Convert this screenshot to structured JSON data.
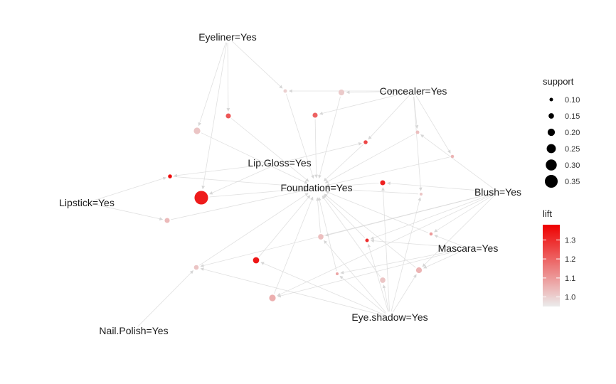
{
  "items": [
    {
      "id": "eyeliner",
      "label": "Eyeliner=Yes"
    },
    {
      "id": "concealer",
      "label": "Concealer=Yes"
    },
    {
      "id": "lipgloss",
      "label": "Lip.Gloss=Yes"
    },
    {
      "id": "foundation",
      "label": "Foundation=Yes"
    },
    {
      "id": "blush",
      "label": "Blush=Yes"
    },
    {
      "id": "lipstick",
      "label": "Lipstick=Yes"
    },
    {
      "id": "mascara",
      "label": "Mascara=Yes"
    },
    {
      "id": "eyeshadow",
      "label": "Eye.shadow=Yes"
    },
    {
      "id": "nailpolish",
      "label": "Nail.Polish=Yes"
    }
  ],
  "rules": [
    {
      "id": "r1",
      "support": 0.1,
      "lift": 1.0
    },
    {
      "id": "r2",
      "support": 0.16,
      "lift": 1.01
    },
    {
      "id": "r3",
      "support": 0.14,
      "lift": 1.22
    },
    {
      "id": "r4",
      "support": 0.14,
      "lift": 1.2
    },
    {
      "id": "r5",
      "support": 0.18,
      "lift": 1.02
    },
    {
      "id": "r6",
      "support": 0.1,
      "lift": 1.03
    },
    {
      "id": "r7",
      "support": 0.11,
      "lift": 1.25
    },
    {
      "id": "r8",
      "support": 0.09,
      "lift": 1.05
    },
    {
      "id": "r9",
      "support": 0.11,
      "lift": 1.36
    },
    {
      "id": "r10",
      "support": 0.14,
      "lift": 1.32
    },
    {
      "id": "r11",
      "support": 0.08,
      "lift": 1.02
    },
    {
      "id": "r12",
      "support": 0.37,
      "lift": 1.33
    },
    {
      "id": "r13",
      "support": 0.14,
      "lift": 1.04
    },
    {
      "id": "r14",
      "support": 0.15,
      "lift": 1.03
    },
    {
      "id": "r15",
      "support": 0.1,
      "lift": 1.3
    },
    {
      "id": "r16",
      "support": 0.09,
      "lift": 1.1
    },
    {
      "id": "r17",
      "support": 0.13,
      "lift": 1.02
    },
    {
      "id": "r18",
      "support": 0.17,
      "lift": 1.34
    },
    {
      "id": "r19",
      "support": 0.16,
      "lift": 1.05
    },
    {
      "id": "r20",
      "support": 0.08,
      "lift": 1.08
    },
    {
      "id": "r21",
      "support": 0.15,
      "lift": 1.02
    },
    {
      "id": "r22",
      "support": 0.18,
      "lift": 1.06
    }
  ],
  "edges": [
    [
      "eyeliner",
      "r1"
    ],
    [
      "eyeliner",
      "r5"
    ],
    [
      "eyeliner",
      "r3"
    ],
    [
      "eyeliner",
      "r12"
    ],
    [
      "concealer",
      "r1"
    ],
    [
      "concealer",
      "r2"
    ],
    [
      "concealer",
      "r4"
    ],
    [
      "concealer",
      "r8"
    ],
    [
      "concealer",
      "r7"
    ],
    [
      "concealer",
      "r11"
    ],
    [
      "concealer",
      "r6"
    ],
    [
      "lipgloss",
      "r9"
    ],
    [
      "lipgloss",
      "r12"
    ],
    [
      "lipgloss",
      "r7"
    ],
    [
      "lipstick",
      "r13"
    ],
    [
      "lipstick",
      "r9"
    ],
    [
      "blush",
      "r6"
    ],
    [
      "blush",
      "r10"
    ],
    [
      "blush",
      "r14"
    ],
    [
      "blush",
      "r15"
    ],
    [
      "blush",
      "r17"
    ],
    [
      "blush",
      "r16"
    ],
    [
      "blush",
      "r19"
    ],
    [
      "blush",
      "r22"
    ],
    [
      "mascara",
      "r15"
    ],
    [
      "mascara",
      "r16"
    ],
    [
      "mascara",
      "r19"
    ],
    [
      "mascara",
      "r22"
    ],
    [
      "mascara",
      "r20"
    ],
    [
      "eyeshadow",
      "r18"
    ],
    [
      "eyeshadow",
      "r20"
    ],
    [
      "eyeshadow",
      "r21"
    ],
    [
      "eyeshadow",
      "r14"
    ],
    [
      "eyeshadow",
      "r15"
    ],
    [
      "eyeshadow",
      "r17"
    ],
    [
      "eyeshadow",
      "r19"
    ],
    [
      "eyeshadow",
      "r11"
    ],
    [
      "eyeshadow",
      "r10"
    ],
    [
      "nailpolish",
      "r17"
    ],
    [
      "r1",
      "foundation"
    ],
    [
      "r2",
      "foundation"
    ],
    [
      "r3",
      "foundation"
    ],
    [
      "r4",
      "foundation"
    ],
    [
      "r5",
      "foundation"
    ],
    [
      "r6",
      "foundation"
    ],
    [
      "r7",
      "foundation"
    ],
    [
      "r8",
      "foundation"
    ],
    [
      "r9",
      "foundation"
    ],
    [
      "r10",
      "foundation"
    ],
    [
      "r11",
      "foundation"
    ],
    [
      "r12",
      "foundation"
    ],
    [
      "r13",
      "foundation"
    ],
    [
      "r14",
      "foundation"
    ],
    [
      "r15",
      "foundation"
    ],
    [
      "r16",
      "foundation"
    ],
    [
      "r17",
      "foundation"
    ],
    [
      "r18",
      "foundation"
    ],
    [
      "r19",
      "foundation"
    ],
    [
      "r20",
      "foundation"
    ],
    [
      "r21",
      "foundation"
    ],
    [
      "r22",
      "foundation"
    ]
  ],
  "legend": {
    "support": {
      "title": "support",
      "entries": [
        {
          "value": 0.1,
          "label": "0.10"
        },
        {
          "value": 0.15,
          "label": "0.15"
        },
        {
          "value": 0.2,
          "label": "0.20"
        },
        {
          "value": 0.25,
          "label": "0.25"
        },
        {
          "value": 0.3,
          "label": "0.30"
        },
        {
          "value": 0.35,
          "label": "0.35"
        }
      ]
    },
    "lift": {
      "title": "lift",
      "range": [
        0.95,
        1.38
      ],
      "ticks": [
        {
          "value": 1.0,
          "label": "1.0"
        },
        {
          "value": 1.1,
          "label": "1.1"
        },
        {
          "value": 1.2,
          "label": "1.2"
        },
        {
          "value": 1.3,
          "label": "1.3"
        }
      ]
    }
  },
  "colors": {
    "low": "#ebebeb",
    "high": "#ee0000",
    "edge": "#d6d6d6",
    "text": "#1a1a1a"
  }
}
